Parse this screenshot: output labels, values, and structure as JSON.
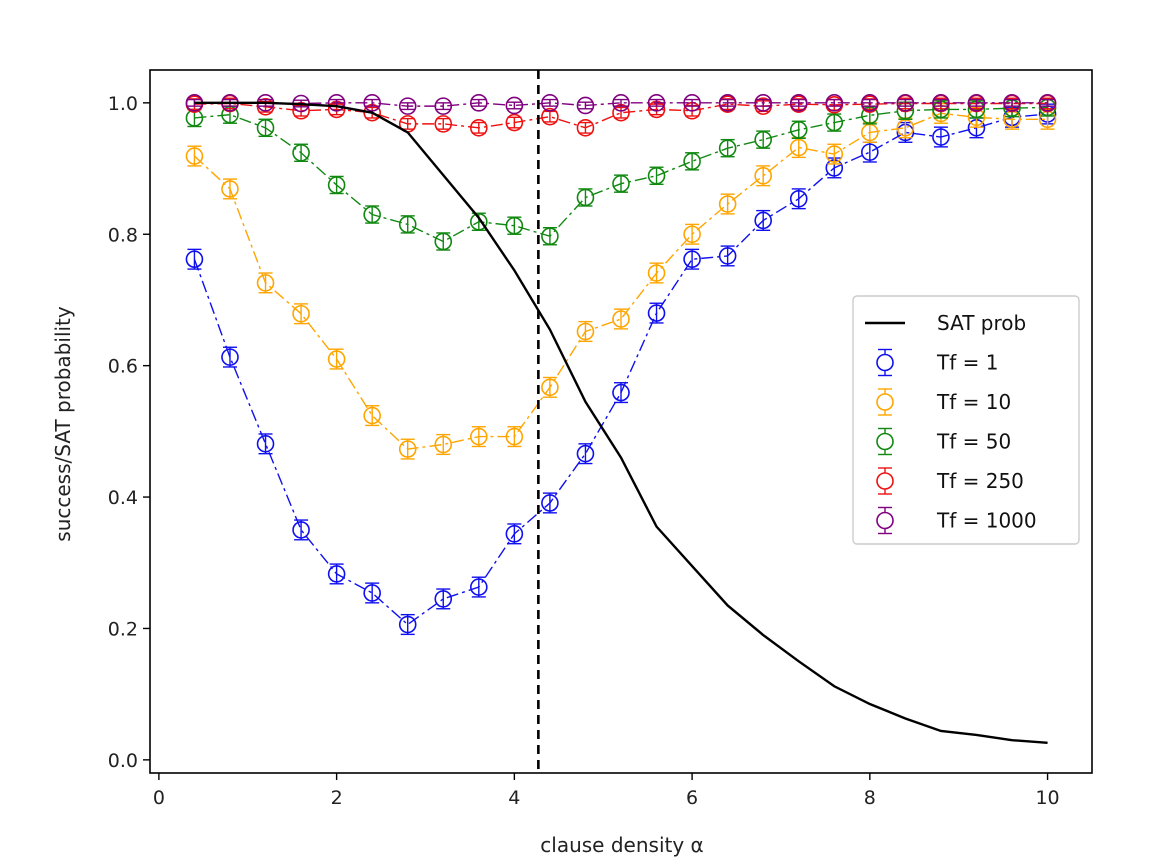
{
  "chart_data": {
    "type": "line",
    "title": "",
    "xlabel": "clause density α",
    "ylabel": "success/SAT probability",
    "xlim": [
      -0.1,
      10.5
    ],
    "ylim": [
      -0.02,
      1.05
    ],
    "xticks": [
      0,
      2,
      4,
      6,
      8,
      10
    ],
    "xtick_labels": [
      "0",
      "2",
      "4",
      "6",
      "8",
      "10"
    ],
    "yticks": [
      0.0,
      0.2,
      0.4,
      0.6,
      0.8,
      1.0
    ],
    "ytick_labels": [
      "0.0",
      "0.2",
      "0.4",
      "0.6",
      "0.8",
      "1.0"
    ],
    "threshold_line": {
      "x": 4.27,
      "style": "dashed",
      "color": "#000000"
    },
    "legend_position": "center-right",
    "sat_prob": {
      "name": "SAT prob",
      "color": "#000000",
      "x": [
        0.4,
        0.8,
        1.2,
        1.6,
        2.0,
        2.4,
        2.8,
        3.2,
        3.6,
        4.0,
        4.4,
        4.8,
        5.2,
        5.6,
        6.0,
        6.4,
        6.8,
        7.2,
        7.6,
        8.0,
        8.4,
        8.8,
        9.2,
        9.6,
        10.0
      ],
      "y": [
        1.0,
        1.0,
        1.0,
        0.998,
        0.995,
        0.985,
        0.955,
        0.89,
        0.825,
        0.745,
        0.655,
        0.545,
        0.46,
        0.355,
        0.295,
        0.235,
        0.19,
        0.15,
        0.112,
        0.085,
        0.063,
        0.044,
        0.038,
        0.03,
        0.026
      ]
    },
    "x": [
      0.4,
      0.8,
      1.2,
      1.6,
      2.0,
      2.4,
      2.8,
      3.2,
      3.6,
      4.0,
      4.4,
      4.8,
      5.2,
      5.6,
      6.0,
      6.4,
      6.8,
      7.2,
      7.6,
      8.0,
      8.4,
      8.8,
      9.2,
      9.6,
      10.0
    ],
    "series": [
      {
        "name": "Tf = 1",
        "color": "#1010ee",
        "err": 0.015,
        "values": [
          0.762,
          0.613,
          0.481,
          0.35,
          0.283,
          0.254,
          0.206,
          0.245,
          0.263,
          0.344,
          0.391,
          0.466,
          0.559,
          0.68,
          0.762,
          0.767,
          0.821,
          0.854,
          0.901,
          0.925,
          0.955,
          0.948,
          0.962,
          0.978,
          0.983
        ]
      },
      {
        "name": "Tf = 10",
        "color": "#ffa500",
        "err": 0.015,
        "values": [
          0.919,
          0.869,
          0.726,
          0.679,
          0.61,
          0.524,
          0.473,
          0.48,
          0.492,
          0.492,
          0.567,
          0.652,
          0.671,
          0.741,
          0.8,
          0.846,
          0.889,
          0.932,
          0.922,
          0.955,
          0.962,
          0.984,
          0.978,
          0.975,
          0.975
        ]
      },
      {
        "name": "Tf = 50",
        "color": "#118811",
        "err": 0.013,
        "values": [
          0.977,
          0.982,
          0.962,
          0.924,
          0.875,
          0.83,
          0.815,
          0.789,
          0.819,
          0.813,
          0.797,
          0.856,
          0.877,
          0.889,
          0.911,
          0.931,
          0.944,
          0.959,
          0.97,
          0.981,
          0.988,
          0.99,
          0.99,
          0.992,
          0.993
        ]
      },
      {
        "name": "Tf = 250",
        "color": "#ee1111",
        "err": 0.008,
        "values": [
          0.998,
          0.999,
          0.994,
          0.988,
          0.99,
          0.985,
          0.968,
          0.968,
          0.962,
          0.97,
          0.979,
          0.962,
          0.985,
          0.99,
          0.988,
          0.998,
          0.995,
          0.998,
          0.997,
          0.998,
          0.999,
          0.999,
          0.999,
          0.999,
          0.999
        ]
      },
      {
        "name": "Tf = 1000",
        "color": "#800080",
        "err": 0.005,
        "values": [
          1.0,
          1.0,
          1.0,
          0.999,
          1.0,
          1.0,
          0.995,
          0.995,
          1.0,
          0.996,
          1.0,
          0.996,
          1.0,
          1.0,
          1.0,
          1.0,
          1.0,
          1.0,
          1.0,
          1.0,
          1.0,
          1.0,
          1.0,
          1.0,
          1.0
        ]
      }
    ]
  }
}
